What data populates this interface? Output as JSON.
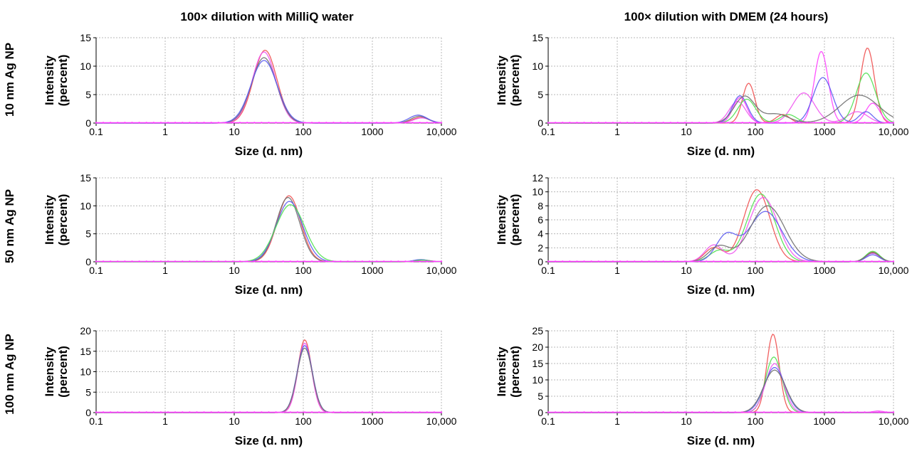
{
  "figure": {
    "col_titles": [
      "100× dilution with MilliQ water",
      "100× dilution with DMEM (24 hours)"
    ],
    "row_labels": [
      "10 nm Ag NP",
      "50 nm Ag NP",
      "100 nm Ag NP"
    ],
    "colors": {
      "red": "#f05050",
      "pink": "#f055f0",
      "blue": "#5a5af0",
      "green": "#50e050",
      "gray": "#707070",
      "magenta": "#ff40ff"
    }
  },
  "chart_data": [
    {
      "type": "line",
      "title": "100× dilution with MilliQ water",
      "row_label": "10 nm Ag NP",
      "xlabel": "Size (d. nm)",
      "ylabel": "Intensity (percent)",
      "xscale": "log",
      "xlim": [
        0.1,
        10000
      ],
      "ylim": [
        0,
        15
      ],
      "xticks": [
        "0.1",
        "1",
        "10",
        "100",
        "1000",
        "10,000"
      ],
      "yticks": [
        0,
        5,
        10,
        15
      ],
      "grid": true,
      "series": [
        {
          "color": "red",
          "peaks": [
            [
              28,
              12.8,
              0.17
            ],
            [
              5000,
              1.0,
              0.12
            ]
          ]
        },
        {
          "color": "pink",
          "peaks": [
            [
              27,
              12.5,
              0.17
            ],
            [
              5200,
              0.9,
              0.12
            ]
          ]
        },
        {
          "color": "gray",
          "peaks": [
            [
              27,
              11.5,
              0.18
            ],
            [
              4800,
              1.2,
              0.12
            ]
          ]
        },
        {
          "color": "blue",
          "peaks": [
            [
              27,
              11.0,
              0.19
            ],
            [
              4600,
              1.4,
              0.13
            ]
          ]
        }
      ]
    },
    {
      "type": "line",
      "title": "100× dilution with DMEM (24 hours)",
      "row_label": "10 nm Ag NP",
      "xlabel": "Size (d. nm)",
      "ylabel": "Intensity (percent)",
      "xscale": "log",
      "xlim": [
        0.1,
        10000
      ],
      "ylim": [
        0,
        15
      ],
      "xticks": [
        "0.1",
        "1",
        "10",
        "100",
        "1000",
        "10,000"
      ],
      "yticks": [
        0,
        5,
        10,
        15
      ],
      "grid": true,
      "series": [
        {
          "color": "red",
          "peaks": [
            [
              80,
              7.0,
              0.09
            ],
            [
              250,
              1.5,
              0.1
            ],
            [
              4200,
              13.2,
              0.1
            ]
          ]
        },
        {
          "color": "magenta",
          "peaks": [
            [
              60,
              4.5,
              0.1
            ],
            [
              900,
              12.6,
              0.1
            ],
            [
              5000,
              3.5,
              0.1
            ]
          ]
        },
        {
          "color": "pink",
          "peaks": [
            [
              55,
              3.8,
              0.12
            ],
            [
              500,
              5.3,
              0.16
            ],
            [
              3000,
              2.0,
              0.15
            ]
          ]
        },
        {
          "color": "blue",
          "peaks": [
            [
              60,
              4.8,
              0.11
            ],
            [
              950,
              8.0,
              0.14
            ],
            [
              4000,
              2.0,
              0.1
            ]
          ]
        },
        {
          "color": "green",
          "peaks": [
            [
              75,
              4.2,
              0.13
            ],
            [
              300,
              1.5,
              0.12
            ],
            [
              4000,
              8.8,
              0.14
            ]
          ]
        },
        {
          "color": "gray",
          "peaks": [
            [
              70,
              4.7,
              0.15
            ],
            [
              200,
              1.6,
              0.18
            ],
            [
              3200,
              4.9,
              0.28
            ]
          ]
        }
      ]
    },
    {
      "type": "line",
      "title": "100× dilution with MilliQ water",
      "row_label": "50 nm Ag NP",
      "xlabel": "Size (d. nm)",
      "ylabel": "Intensity (percent)",
      "xscale": "log",
      "xlim": [
        0.1,
        10000
      ],
      "ylim": [
        0,
        15
      ],
      "xticks": [
        "0.1",
        "1",
        "10",
        "100",
        "1000",
        "10,000"
      ],
      "yticks": [
        0,
        5,
        10,
        15
      ],
      "grid": true,
      "series": [
        {
          "color": "red",
          "peaks": [
            [
              62,
              11.8,
              0.17
            ],
            [
              5500,
              0.3,
              0.1
            ]
          ]
        },
        {
          "color": "gray",
          "peaks": [
            [
              60,
              11.5,
              0.17
            ],
            [
              5500,
              0.3,
              0.1
            ]
          ]
        },
        {
          "color": "blue",
          "peaks": [
            [
              63,
              10.8,
              0.19
            ],
            [
              5000,
              0.4,
              0.1
            ]
          ]
        },
        {
          "color": "green",
          "peaks": [
            [
              65,
              10.2,
              0.21
            ],
            [
              5200,
              0.3,
              0.1
            ]
          ]
        }
      ]
    },
    {
      "type": "line",
      "title": "100× dilution with DMEM (24 hours)",
      "row_label": "50 nm Ag NP",
      "xlabel": "Size (d. nm)",
      "ylabel": "Intensity (percent)",
      "xscale": "log",
      "xlim": [
        0.1,
        10000
      ],
      "ylim": [
        0,
        12
      ],
      "xticks": [
        "0.1",
        "1",
        "10",
        "100",
        "1000",
        "10,000"
      ],
      "yticks": [
        0,
        2,
        4,
        6,
        8,
        10,
        12
      ],
      "grid": true,
      "series": [
        {
          "color": "red",
          "peaks": [
            [
              105,
              10.3,
              0.19
            ],
            [
              25,
              2.0,
              0.13
            ],
            [
              5000,
              1.4,
              0.1
            ]
          ]
        },
        {
          "color": "green",
          "peaks": [
            [
              120,
              9.7,
              0.2
            ],
            [
              30,
              1.6,
              0.14
            ],
            [
              5000,
              1.5,
              0.1
            ]
          ]
        },
        {
          "color": "pink",
          "peaks": [
            [
              130,
              9.2,
              0.21
            ],
            [
              25,
              2.4,
              0.13
            ],
            [
              5000,
              1.2,
              0.1
            ]
          ]
        },
        {
          "color": "blue",
          "peaks": [
            [
              140,
              7.2,
              0.24
            ],
            [
              38,
              3.7,
              0.15
            ],
            [
              5000,
              1.0,
              0.1
            ]
          ]
        },
        {
          "color": "gray",
          "peaks": [
            [
              150,
              8.0,
              0.25
            ],
            [
              30,
              2.2,
              0.15
            ],
            [
              5000,
              1.3,
              0.1
            ]
          ]
        }
      ]
    },
    {
      "type": "line",
      "title": "100× dilution with MilliQ water",
      "row_label": "100 nm Ag NP",
      "xlabel": "Size (d. nm)",
      "ylabel": "Intensity (percent)",
      "xscale": "log",
      "xlim": [
        0.1,
        10000
      ],
      "ylim": [
        0,
        20
      ],
      "xticks": [
        "0.1",
        "1",
        "10",
        "100",
        "1000",
        "10,000"
      ],
      "yticks": [
        0,
        5,
        10,
        15,
        20
      ],
      "grid": true,
      "series": [
        {
          "color": "red",
          "peaks": [
            [
              105,
              17.8,
              0.1
            ]
          ]
        },
        {
          "color": "pink",
          "peaks": [
            [
              105,
              17.0,
              0.1
            ]
          ]
        },
        {
          "color": "blue",
          "peaks": [
            [
              105,
              16.4,
              0.11
            ]
          ]
        },
        {
          "color": "gray",
          "peaks": [
            [
              105,
              15.8,
              0.11
            ]
          ]
        }
      ]
    },
    {
      "type": "line",
      "title": "100× dilution with DMEM (24 hours)",
      "row_label": "100 nm Ag NP",
      "xlabel": "Size (d. nm)",
      "ylabel": "Intensity (percent)",
      "xscale": "log",
      "xlim": [
        0.1,
        10000
      ],
      "ylim": [
        0,
        25
      ],
      "xticks": [
        "0.1",
        "1",
        "10",
        "100",
        "1000",
        "10,000"
      ],
      "yticks": [
        0,
        5,
        10,
        15,
        20,
        25
      ],
      "grid": true,
      "series": [
        {
          "color": "red",
          "peaks": [
            [
              180,
              24.0,
              0.09
            ]
          ]
        },
        {
          "color": "green",
          "peaks": [
            [
              185,
              17.0,
              0.12
            ]
          ]
        },
        {
          "color": "pink",
          "peaks": [
            [
              190,
              15.0,
              0.13
            ],
            [
              6000,
              0.5,
              0.08
            ]
          ]
        },
        {
          "color": "blue",
          "peaks": [
            [
              190,
              13.8,
              0.15
            ]
          ]
        },
        {
          "color": "gray",
          "peaks": [
            [
              190,
              13.0,
              0.16
            ]
          ]
        }
      ]
    }
  ]
}
